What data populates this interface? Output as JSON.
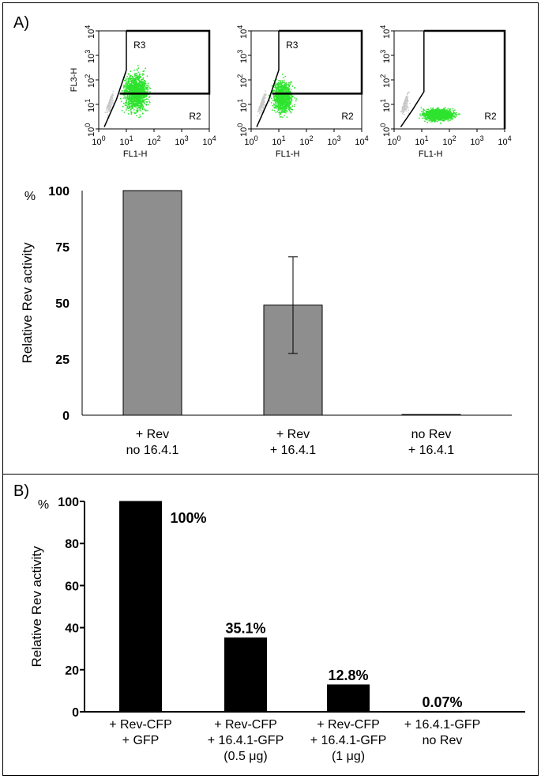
{
  "panel_a": {
    "label": "A)",
    "flow_plots": [
      {
        "ylabel": "FL3-H",
        "xlabel": "FL1-H",
        "x_ticks": [
          {
            "base": "10",
            "exp": "0"
          },
          {
            "base": "10",
            "exp": "1"
          },
          {
            "base": "10",
            "exp": "2"
          },
          {
            "base": "10",
            "exp": "3"
          },
          {
            "base": "10",
            "exp": "4"
          }
        ],
        "y_ticks": [
          {
            "base": "10",
            "exp": "0"
          },
          {
            "base": "10",
            "exp": "1"
          },
          {
            "base": "10",
            "exp": "2"
          },
          {
            "base": "10",
            "exp": "3"
          },
          {
            "base": "10",
            "exp": "4"
          }
        ],
        "gates": [
          "R3",
          "R2"
        ],
        "population": "spread"
      },
      {
        "ylabel": "",
        "xlabel": "FL1-H",
        "x_ticks": [
          {
            "base": "10",
            "exp": "0"
          },
          {
            "base": "10",
            "exp": "1"
          },
          {
            "base": "10",
            "exp": "2"
          },
          {
            "base": "10",
            "exp": "3"
          },
          {
            "base": "10",
            "exp": "4"
          }
        ],
        "y_ticks": [
          {
            "base": "10",
            "exp": "0"
          },
          {
            "base": "10",
            "exp": "1"
          },
          {
            "base": "10",
            "exp": "2"
          },
          {
            "base": "10",
            "exp": "3"
          },
          {
            "base": "10",
            "exp": "4"
          }
        ],
        "gates": [
          "R3",
          "R2"
        ],
        "population": "partial"
      },
      {
        "ylabel": "",
        "xlabel": "FL1-H",
        "x_ticks": [
          {
            "base": "10",
            "exp": "0"
          },
          {
            "base": "10",
            "exp": "1"
          },
          {
            "base": "10",
            "exp": "2"
          },
          {
            "base": "10",
            "exp": "3"
          },
          {
            "base": "10",
            "exp": "4"
          }
        ],
        "y_ticks": [
          {
            "base": "10",
            "exp": "0"
          },
          {
            "base": "10",
            "exp": "1"
          },
          {
            "base": "10",
            "exp": "2"
          },
          {
            "base": "10",
            "exp": "3"
          },
          {
            "base": "10",
            "exp": "4"
          }
        ],
        "gates": [
          "R2"
        ],
        "population": "low"
      }
    ]
  },
  "panel_b": {
    "label": "B)"
  },
  "colors": {
    "gray_bar": "#8e8e8e",
    "black_bar": "#000000",
    "green_dots": "#2ee32e",
    "gray_dots": "#c8c8c8"
  },
  "chart_data": [
    {
      "type": "bar",
      "title": "",
      "ylabel": "Relative Rev activity",
      "yunit": "%",
      "ylim": [
        0,
        100
      ],
      "yticks": [
        0,
        25,
        50,
        75,
        100
      ],
      "categories": [
        [
          "+ Rev",
          "no 16.4.1"
        ],
        [
          "+ Rev",
          "+ 16.4.1"
        ],
        [
          "no Rev",
          "+ 16.4.1"
        ]
      ],
      "values": [
        100,
        49,
        0.3
      ],
      "error": [
        0,
        21.5,
        0
      ]
    },
    {
      "type": "bar",
      "title": "",
      "ylabel": "Relative Rev activity",
      "yunit": "%",
      "ylim": [
        0,
        100
      ],
      "yticks": [
        0,
        20,
        40,
        60,
        80,
        100
      ],
      "categories": [
        [
          "+ Rev-CFP",
          "+ GFP"
        ],
        [
          "+ Rev-CFP",
          "+ 16.4.1-GFP",
          "(0.5 μg)"
        ],
        [
          "+ Rev-CFP",
          "+ 16.4.1-GFP",
          "(1 μg)"
        ],
        [
          "+ 16.4.1-GFP",
          "no Rev"
        ]
      ],
      "values": [
        100,
        35.1,
        12.8,
        0.07
      ],
      "value_labels": [
        "100%",
        "35.1%",
        "12.8%",
        "0.07%"
      ]
    }
  ]
}
